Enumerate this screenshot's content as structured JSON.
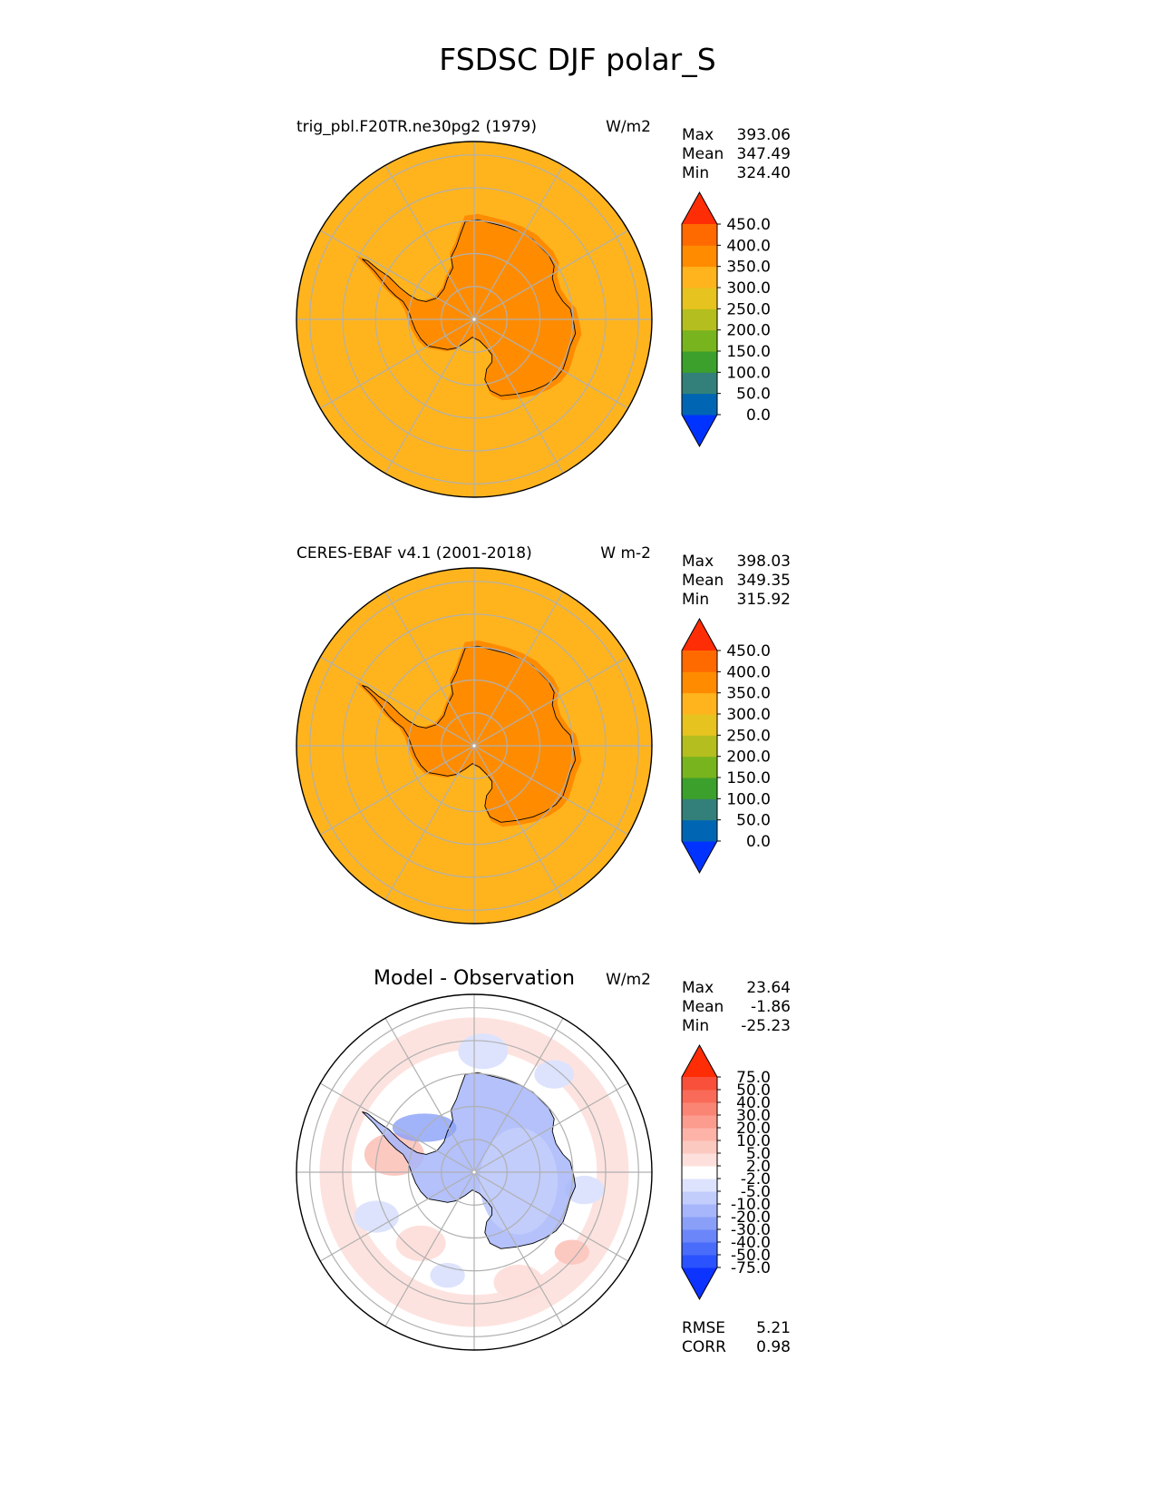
{
  "figure": {
    "title": "FSDSC DJF polar_S"
  },
  "colorbars": {
    "abs": {
      "colors": [
        "#0033ff",
        "#0066b3",
        "#33807a",
        "#3ca02c",
        "#78b41e",
        "#b4be1e",
        "#e6c31e",
        "#ffb41e",
        "#ff8c00",
        "#ff6a00",
        "#ff2d05"
      ],
      "labels": [
        "0.0",
        "50.0",
        "100.0",
        "150.0",
        "200.0",
        "250.0",
        "300.0",
        "350.0",
        "400.0",
        "450.0"
      ]
    },
    "diff": {
      "colors": [
        "#0d33ff",
        "#2a52ff",
        "#4a6cfb",
        "#6a86f8",
        "#8aa0f8",
        "#a7b6fa",
        "#c2cdfc",
        "#dde3fd",
        "#ffffff",
        "#fde0dc",
        "#fcc9c1",
        "#fdb3a8",
        "#fb9c8e",
        "#fa8574",
        "#f96b58",
        "#f8503a",
        "#ff2d05"
      ],
      "labels": [
        "-75.0",
        "-50.0",
        "-40.0",
        "-30.0",
        "-20.0",
        "-10.0",
        "-5.0",
        "-2.0",
        "2.0",
        "5.0",
        "10.0",
        "20.0",
        "30.0",
        "40.0",
        "50.0",
        "75.0"
      ]
    }
  },
  "panels": [
    {
      "left_title": "trig_pbl.F20TR.ne30pg2 (1979)",
      "center_title": "",
      "units": "W/m2",
      "stats": [
        {
          "label": "Max",
          "value": "393.06"
        },
        {
          "label": "Mean",
          "value": "347.49"
        },
        {
          "label": "Min",
          "value": "324.40"
        }
      ],
      "extra_stats": [],
      "colorbar": "abs",
      "ocean_color": "#ffb41e",
      "land_color": "#ff8c00"
    },
    {
      "left_title": "CERES-EBAF v4.1 (2001-2018)",
      "center_title": "",
      "units": "W m-2",
      "stats": [
        {
          "label": "Max",
          "value": "398.03"
        },
        {
          "label": "Mean",
          "value": "349.35"
        },
        {
          "label": "Min",
          "value": "315.92"
        }
      ],
      "extra_stats": [],
      "colorbar": "abs",
      "ocean_color": "#ffb41e",
      "land_color": "#ff8c00"
    },
    {
      "left_title": "",
      "center_title": "Model - Observation",
      "units": "W/m2",
      "stats": [
        {
          "label": "Max",
          "value": "23.64"
        },
        {
          "label": "Mean",
          "value": "-1.86"
        },
        {
          "label": "Min",
          "value": "-25.23"
        }
      ],
      "extra_stats": [
        {
          "label": "RMSE",
          "value": "5.21"
        },
        {
          "label": "CORR",
          "value": "0.98"
        }
      ],
      "colorbar": "diff",
      "ocean_color": "#ffffff",
      "land_color": "#c2cdfc"
    }
  ],
  "chart_data": [
    {
      "type": "heatmap",
      "title": "trig_pbl.F20TR.ne30pg2 (1979)",
      "projection": "south polar stereographic",
      "units": "W/m2",
      "field": "FSDSC",
      "season": "DJF",
      "levels": [
        0,
        50,
        100,
        150,
        200,
        250,
        300,
        350,
        400,
        450
      ],
      "colorbar_extend": "both",
      "summary": {
        "max": 393.06,
        "mean": 347.49,
        "min": 324.4
      },
      "regions": [
        {
          "region": "ocean",
          "range": [
            300,
            350
          ]
        },
        {
          "region": "antarctica",
          "range": [
            350,
            400
          ]
        }
      ]
    },
    {
      "type": "heatmap",
      "title": "CERES-EBAF v4.1 (2001-2018)",
      "projection": "south polar stereographic",
      "units": "W m-2",
      "levels": [
        0,
        50,
        100,
        150,
        200,
        250,
        300,
        350,
        400,
        450
      ],
      "colorbar_extend": "both",
      "summary": {
        "max": 398.03,
        "mean": 349.35,
        "min": 315.92
      },
      "regions": [
        {
          "region": "ocean",
          "range": [
            300,
            350
          ]
        },
        {
          "region": "antarctica",
          "range": [
            350,
            400
          ]
        }
      ]
    },
    {
      "type": "heatmap",
      "title": "Model - Observation",
      "projection": "south polar stereographic",
      "units": "W/m2",
      "levels": [
        -75,
        -50,
        -40,
        -30,
        -20,
        -10,
        -5,
        -2,
        2,
        5,
        10,
        20,
        30,
        40,
        50,
        75
      ],
      "colorbar_extend": "both",
      "summary": {
        "max": 23.64,
        "mean": -1.86,
        "min": -25.23,
        "rmse": 5.21,
        "corr": 0.98
      },
      "regions": [
        {
          "region": "antarctica",
          "range": [
            -10,
            -2
          ]
        },
        {
          "region": "ocean near coast",
          "range": [
            -5,
            5
          ]
        },
        {
          "region": "outer ring",
          "range": [
            2,
            10
          ]
        }
      ]
    }
  ]
}
